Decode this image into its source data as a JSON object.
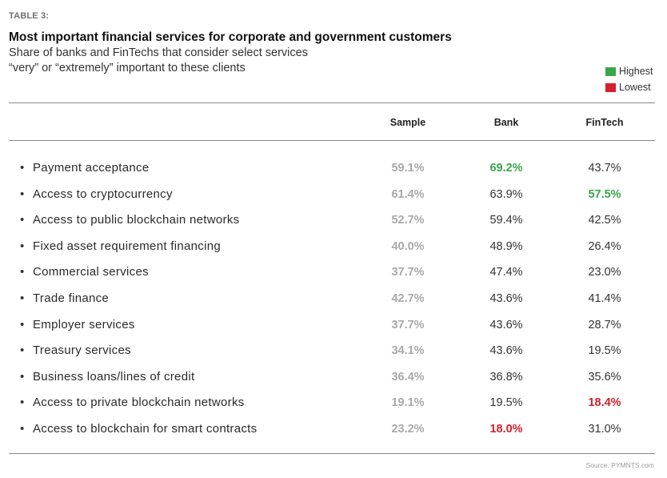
{
  "eyebrow": "TABLE 3:",
  "title": "Most important financial services for corporate and government customers",
  "subtitle_line1": "Share of banks and FinTechs that consider select services",
  "subtitle_line2": "“very” or “extremely” important to these clients",
  "legend": [
    {
      "label": "Highest",
      "color": "#3aa64a"
    },
    {
      "label": "Lowest",
      "color": "#d3202b"
    }
  ],
  "source": "Source: PYMNTS.com",
  "chart_data": {
    "type": "table",
    "title": "Most important financial services for corporate and government customers",
    "subtitle": "Share of banks and FinTechs that consider select services “very” or “extremely” important to these clients",
    "columns": [
      "Sample",
      "Bank",
      "FinTech"
    ],
    "rows": [
      {
        "label": "Payment acceptance",
        "values": [
          "59.1%",
          "69.2%",
          "43.7%"
        ],
        "highlight": [
          null,
          "highest",
          null
        ]
      },
      {
        "label": "Access to cryptocurrency",
        "values": [
          "61.4%",
          "63.9%",
          "57.5%"
        ],
        "highlight": [
          null,
          null,
          "highest"
        ]
      },
      {
        "label": "Access to public blockchain networks",
        "values": [
          "52.7%",
          "59.4%",
          "42.5%"
        ],
        "highlight": [
          null,
          null,
          null
        ]
      },
      {
        "label": "Fixed asset requirement financing",
        "values": [
          "40.0%",
          "48.9%",
          "26.4%"
        ],
        "highlight": [
          null,
          null,
          null
        ]
      },
      {
        "label": "Commercial services",
        "values": [
          "37.7%",
          "47.4%",
          "23.0%"
        ],
        "highlight": [
          null,
          null,
          null
        ]
      },
      {
        "label": "Trade finance",
        "values": [
          "42.7%",
          "43.6%",
          "41.4%"
        ],
        "highlight": [
          null,
          null,
          null
        ]
      },
      {
        "label": "Employer services",
        "values": [
          "37.7%",
          "43.6%",
          "28.7%"
        ],
        "highlight": [
          null,
          null,
          null
        ]
      },
      {
        "label": "Treasury services",
        "values": [
          "34.1%",
          "43.6%",
          "19.5%"
        ],
        "highlight": [
          null,
          null,
          null
        ]
      },
      {
        "label": "Business loans/lines of credit",
        "values": [
          "36.4%",
          "36.8%",
          "35.6%"
        ],
        "highlight": [
          null,
          null,
          null
        ]
      },
      {
        "label": "Access to private blockchain networks",
        "values": [
          "19.1%",
          "19.5%",
          "18.4%"
        ],
        "highlight": [
          null,
          null,
          "lowest"
        ]
      },
      {
        "label": "Access to blockchain for smart contracts",
        "values": [
          "23.2%",
          "18.0%",
          "31.0%"
        ],
        "highlight": [
          null,
          "lowest",
          null
        ]
      }
    ],
    "legend": [
      "Highest",
      "Lowest"
    ],
    "legend_position": "top-right"
  }
}
